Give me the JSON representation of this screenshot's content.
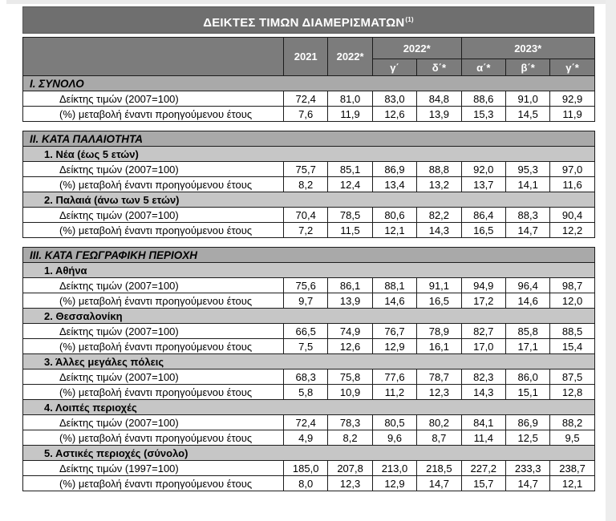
{
  "page": {
    "title": "ΔΕΙΚΤΕΣ ΤΙΜΩΝ ΔΙΑΜΕΡΙΣΜΑΤΩΝ",
    "title_footnote": "(1)"
  },
  "colors": {
    "title_bar_bg": "#6f6f6f",
    "header_bg": "#7c7c7c",
    "section_band_bg": "#a9a9a9",
    "subsection_band_bg": "#c6c6c6",
    "header_text": "#ffffff",
    "body_text": "#000000",
    "grid_line": "#1c1c1c"
  },
  "table": {
    "year_columns": [
      "2021",
      "2022*"
    ],
    "groups": [
      {
        "label": "2022*",
        "subcolumns": [
          "γ΄",
          "δ΄*"
        ]
      },
      {
        "label": "2023*",
        "subcolumns": [
          "α΄*",
          "β΄*",
          "γ΄*"
        ]
      }
    ],
    "sections": [
      {
        "heading": "I. ΣΥΝΟΛΟ",
        "subsections": [
          {
            "heading": null,
            "rows": [
              {
                "label": "Δείκτης τιμών (2007=100)",
                "values": [
                  "72,4",
                  "81,0",
                  "83,0",
                  "84,8",
                  "88,6",
                  "91,0",
                  "92,9"
                ]
              },
              {
                "label": "(%) μεταβολή έναντι προηγούμενου έτους",
                "values": [
                  "7,6",
                  "11,9",
                  "12,6",
                  "13,9",
                  "15,3",
                  "14,5",
                  "11,9"
                ]
              }
            ]
          }
        ]
      },
      {
        "heading": "II. ΚΑΤΑ ΠΑΛΑΙΟΤΗΤΑ",
        "subsections": [
          {
            "heading": "1.  Νέα (έως 5 ετών)",
            "rows": [
              {
                "label": "Δείκτης τιμών (2007=100)",
                "values": [
                  "75,7",
                  "85,1",
                  "86,9",
                  "88,8",
                  "92,0",
                  "95,3",
                  "97,0"
                ]
              },
              {
                "label": "(%) μεταβολή έναντι προηγούμενου έτους",
                "values": [
                  "8,2",
                  "12,4",
                  "13,4",
                  "13,2",
                  "13,7",
                  "14,1",
                  "11,6"
                ]
              }
            ]
          },
          {
            "heading": "2.  Παλαιά (άνω των 5 ετών)",
            "rows": [
              {
                "label": "Δείκτης τιμών (2007=100)",
                "values": [
                  "70,4",
                  "78,5",
                  "80,6",
                  "82,2",
                  "86,4",
                  "88,3",
                  "90,4"
                ]
              },
              {
                "label": "(%) μεταβολή έναντι προηγούμενου έτους",
                "values": [
                  "7,2",
                  "11,5",
                  "12,1",
                  "14,3",
                  "16,5",
                  "14,7",
                  "12,2"
                ]
              }
            ]
          }
        ]
      },
      {
        "heading": "III. ΚΑΤΑ ΓΕΩΓΡΑΦΙΚΗ ΠΕΡΙΟΧΗ",
        "subsections": [
          {
            "heading": "1.  Αθήνα",
            "rows": [
              {
                "label": "Δείκτης τιμών (2007=100)",
                "values": [
                  "75,6",
                  "86,1",
                  "88,1",
                  "91,1",
                  "94,9",
                  "96,4",
                  "98,7"
                ]
              },
              {
                "label": "(%) μεταβολή έναντι προηγούμενου έτους",
                "values": [
                  "9,7",
                  "13,9",
                  "14,6",
                  "16,5",
                  "17,2",
                  "14,6",
                  "12,0"
                ]
              }
            ]
          },
          {
            "heading": "2.  Θεσσαλονίκη",
            "rows": [
              {
                "label": "Δείκτης τιμών (2007=100)",
                "values": [
                  "66,5",
                  "74,9",
                  "76,7",
                  "78,9",
                  "82,7",
                  "85,8",
                  "88,5"
                ]
              },
              {
                "label": "(%) μεταβολή έναντι προηγούμενου έτους",
                "values": [
                  "7,5",
                  "12,6",
                  "12,9",
                  "16,1",
                  "17,0",
                  "17,1",
                  "15,4"
                ]
              }
            ]
          },
          {
            "heading": "3.  Άλλες μεγάλες πόλεις",
            "rows": [
              {
                "label": "Δείκτης τιμών (2007=100)",
                "values": [
                  "68,3",
                  "75,8",
                  "77,6",
                  "78,7",
                  "82,3",
                  "86,0",
                  "87,5"
                ]
              },
              {
                "label": "(%) μεταβολή έναντι προηγούμενου έτους",
                "values": [
                  "5,8",
                  "10,9",
                  "11,2",
                  "12,3",
                  "14,3",
                  "15,1",
                  "12,8"
                ]
              }
            ]
          },
          {
            "heading": "4.  Λοιπές περιοχές",
            "rows": [
              {
                "label": "Δείκτης τιμών (2007=100)",
                "values": [
                  "72,4",
                  "78,3",
                  "80,5",
                  "80,2",
                  "84,1",
                  "86,9",
                  "88,2"
                ]
              },
              {
                "label": "(%) μεταβολή έναντι προηγούμενου έτους",
                "values": [
                  "4,9",
                  "8,2",
                  "9,6",
                  "8,7",
                  "11,4",
                  "12,5",
                  "9,5"
                ]
              }
            ]
          },
          {
            "heading": "5.  Αστικές περιοχές (σύνολο)",
            "rows": [
              {
                "label": "Δείκτης τιμών (1997=100)",
                "values": [
                  "185,0",
                  "207,8",
                  "213,0",
                  "218,5",
                  "227,2",
                  "233,3",
                  "238,7"
                ]
              },
              {
                "label": "(%) μεταβολή έναντι προηγούμενου έτους",
                "values": [
                  "8,0",
                  "12,3",
                  "12,9",
                  "14,7",
                  "15,7",
                  "14,7",
                  "12,1"
                ]
              }
            ]
          }
        ]
      }
    ]
  }
}
